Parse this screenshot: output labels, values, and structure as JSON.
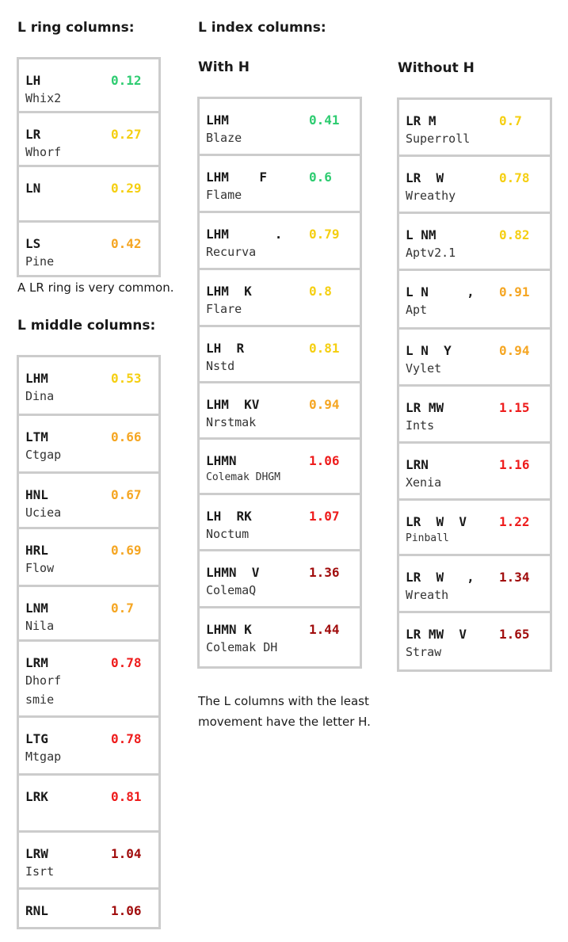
{
  "colors": {
    "green": "#2ecc71",
    "yellow": "#f5cf12",
    "orange": "#f5a623",
    "red": "#ee1c1c",
    "darkred": "#a10d0d",
    "border": "#cccccc"
  },
  "ring": {
    "heading": "L ring columns:",
    "note": "A LR ring is very common.",
    "rows": [
      {
        "key": "LH",
        "val": "0.12",
        "color": "green",
        "name": "Whix2"
      },
      {
        "key": "LR",
        "val": "0.27",
        "color": "yellow",
        "name": "Whorf"
      },
      {
        "key": "LN",
        "val": "0.29",
        "color": "yellow",
        "name": ""
      },
      {
        "key": "LS",
        "val": "0.42",
        "color": "orange",
        "name": "Pine"
      }
    ]
  },
  "middle": {
    "heading": "L middle columns:",
    "rows": [
      {
        "key": "LHM",
        "val": "0.53",
        "color": "yellow",
        "name": "Dina"
      },
      {
        "key": "LTM",
        "val": "0.66",
        "color": "orange",
        "name": "Ctgap"
      },
      {
        "key": "HNL",
        "val": "0.67",
        "color": "orange",
        "name": "Uciea"
      },
      {
        "key": "HRL",
        "val": "0.69",
        "color": "orange",
        "name": "Flow"
      },
      {
        "key": "LNM",
        "val": "0.7",
        "color": "orange",
        "name": "Nila"
      },
      {
        "key": "LRM",
        "val": "0.78",
        "color": "red",
        "name": "Dhorf",
        "name2": "smie"
      },
      {
        "key": "LTG",
        "val": "0.78",
        "color": "red",
        "name": "Mtgap"
      },
      {
        "key": "LRK",
        "val": "0.81",
        "color": "red",
        "name": ""
      },
      {
        "key": "LRW",
        "val": "1.04",
        "color": "darkred",
        "name": "Isrt"
      },
      {
        "key": "RNL",
        "val": "1.06",
        "color": "darkred",
        "name": ""
      }
    ]
  },
  "index": {
    "heading": "L index columns:",
    "with_h": {
      "heading": "With H",
      "rows": [
        {
          "key": "LHM",
          "val": "0.41",
          "color": "green",
          "name": "Blaze"
        },
        {
          "key": "LHM    F",
          "val": "0.6",
          "color": "green",
          "name": "Flame"
        },
        {
          "key": "LHM      .",
          "val": "0.79",
          "color": "yellow",
          "name": "Recurva"
        },
        {
          "key": "LHM  K",
          "val": "0.8",
          "color": "yellow",
          "name": "Flare"
        },
        {
          "key": "LH  R",
          "val": "0.81",
          "color": "yellow",
          "name": "Nstd"
        },
        {
          "key": "LHM  KV",
          "val": "0.94",
          "color": "orange",
          "name": "Nrstmak"
        },
        {
          "key": "LHMN",
          "val": "1.06",
          "color": "red",
          "name": "Colemak DHGM",
          "small": true
        },
        {
          "key": "LH  RK",
          "val": "1.07",
          "color": "red",
          "name": "Noctum"
        },
        {
          "key": "LHMN  V",
          "val": "1.36",
          "color": "darkred",
          "name": "ColemaQ"
        },
        {
          "key": "LHMN K",
          "val": "1.44",
          "color": "darkred",
          "name": "Colemak DH"
        }
      ]
    },
    "without_h": {
      "heading": "Without H",
      "rows": [
        {
          "key": "LR M",
          "val": "0.7",
          "color": "yellow",
          "name": "Superroll"
        },
        {
          "key": "LR  W",
          "val": "0.78",
          "color": "yellow",
          "name": "Wreathy"
        },
        {
          "key": "L NM",
          "val": "0.82",
          "color": "yellow",
          "name": "Aptv2.1"
        },
        {
          "key": "L N     ,",
          "val": "0.91",
          "color": "orange",
          "name": "Apt"
        },
        {
          "key": "L N  Y",
          "val": "0.94",
          "color": "orange",
          "name": "Vylet"
        },
        {
          "key": "LR MW",
          "val": "1.15",
          "color": "red",
          "name": "Ints"
        },
        {
          "key": "LRN",
          "val": "1.16",
          "color": "red",
          "name": "Xenia"
        },
        {
          "key": "LR  W  V",
          "val": "1.22",
          "color": "red",
          "name": "Pinball",
          "small": true
        },
        {
          "key": "LR  W   ,",
          "val": "1.34",
          "color": "darkred",
          "name": "Wreath"
        },
        {
          "key": "LR MW  V",
          "val": "1.65",
          "color": "darkred",
          "name": "Straw"
        }
      ]
    },
    "note": "The L columns with the least movement have the letter H."
  }
}
